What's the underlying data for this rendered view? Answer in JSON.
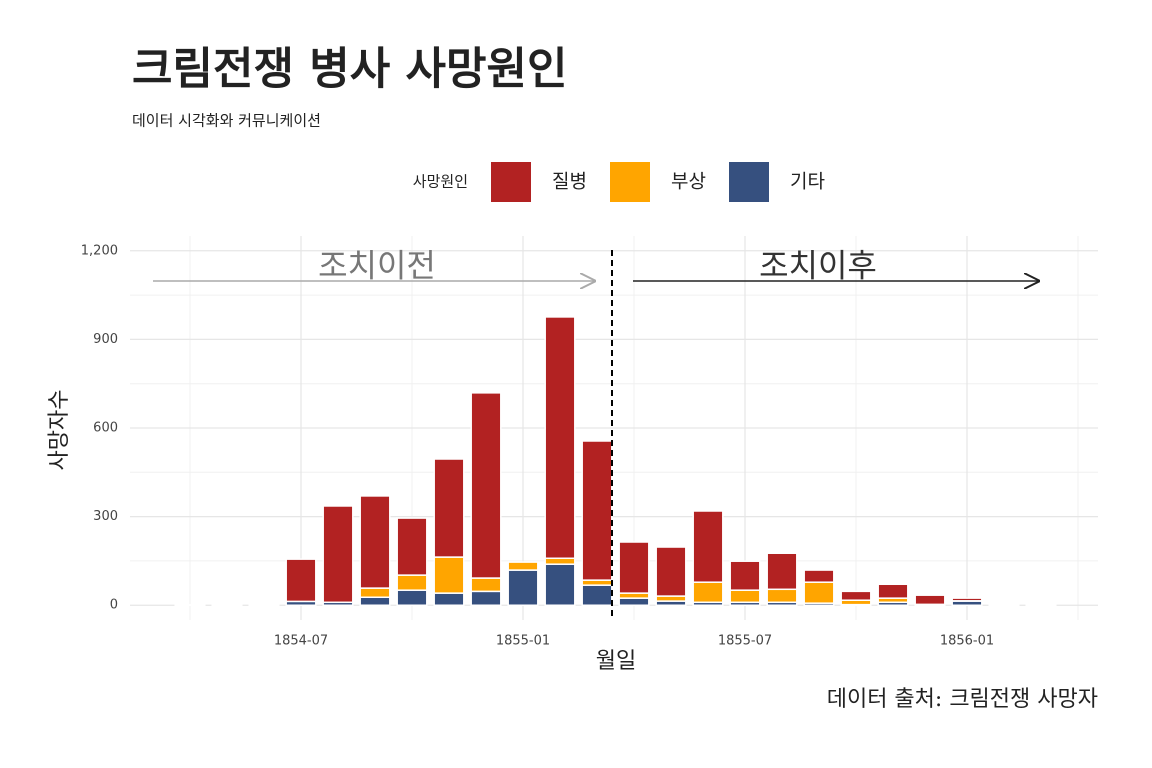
{
  "chart_data": {
    "type": "bar",
    "stacked": true,
    "title": "크림전쟁 병사 사망원인",
    "subtitle": "데이터 시각화와 커뮤니케이션",
    "caption": "데이터 출처: 크림전쟁 사망자",
    "xlabel": "월일",
    "ylabel": "사망자수",
    "legend_title": "사망원인",
    "legend_position": "top",
    "annotations": [
      "조치이전",
      "조치이후"
    ],
    "x": [
      "1854-04",
      "1854-05",
      "1854-06",
      "1854-07",
      "1854-08",
      "1854-09",
      "1854-10",
      "1854-11",
      "1854-12",
      "1855-01",
      "1855-02",
      "1855-03",
      "1855-04",
      "1855-05",
      "1855-06",
      "1855-07",
      "1855-08",
      "1855-09",
      "1855-10",
      "1855-11",
      "1855-12",
      "1856-01",
      "1856-02",
      "1856-03"
    ],
    "series": [
      {
        "name": "질병",
        "color": "#b22222",
        "values": [
          1,
          2,
          1,
          143,
          326,
          312,
          193,
          332,
          627,
          0,
          817,
          471,
          173,
          166,
          241,
          98,
          122,
          41,
          30,
          47,
          31,
          9,
          1,
          1
        ]
      },
      {
        "name": "부상",
        "color": "#ffa500",
        "values": [
          0,
          0,
          0,
          0,
          0,
          31,
          51,
          122,
          45,
          27,
          20,
          17,
          17,
          17,
          68,
          41,
          44,
          71,
          15,
          14,
          1,
          1,
          0,
          0
        ]
      },
      {
        "name": "기타",
        "color": "#36507f",
        "values": [
          1,
          2,
          1,
          13,
          10,
          27,
          51,
          41,
          47,
          119,
          139,
          68,
          24,
          14,
          10,
          10,
          10,
          7,
          2,
          10,
          2,
          14,
          1,
          1
        ]
      }
    ],
    "xlim": [
      "1854-03",
      "1856-04"
    ],
    "xticks": [
      "1854-07",
      "1855-01",
      "1855-07",
      "1856-01"
    ],
    "ylim": [
      -50,
      1250
    ],
    "yticks": [
      0,
      300,
      600,
      900,
      {
        "value": 1200,
        "label": "1,200"
      }
    ],
    "grid": true
  }
}
